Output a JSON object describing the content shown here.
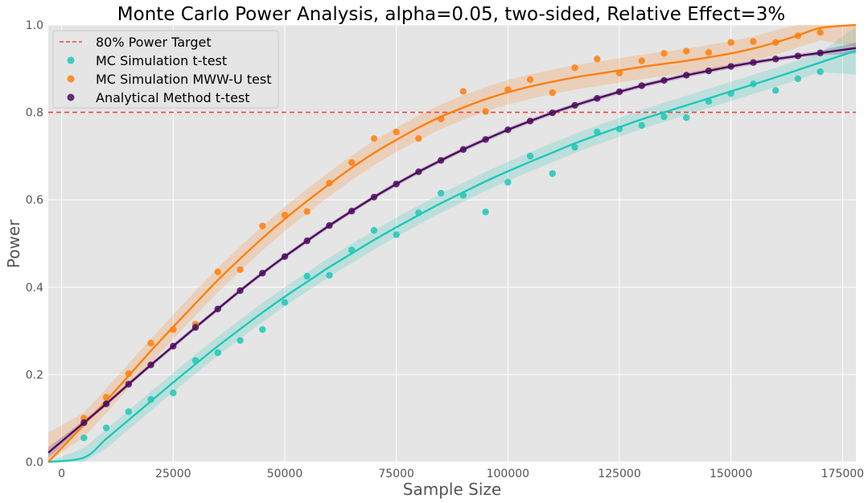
{
  "chart_data": {
    "type": "scatter",
    "title": "Monte Carlo Power Analysis, alpha=0.05, two-sided, Relative Effect=3%",
    "xlabel": "Sample Size",
    "ylabel": "Power",
    "xlim": [
      -3000,
      178000
    ],
    "ylim": [
      0,
      1.0
    ],
    "x_ticks": [
      0,
      25000,
      50000,
      75000,
      100000,
      125000,
      150000,
      175000
    ],
    "y_ticks": [
      0.0,
      0.2,
      0.4,
      0.6,
      0.8,
      1.0
    ],
    "x_tick_labels": [
      "0",
      "25000",
      "50000",
      "75000",
      "100000",
      "125000",
      "150000",
      "175000"
    ],
    "y_tick_labels": [
      "0.0",
      "0.2",
      "0.4",
      "0.6",
      "0.8",
      "1.0"
    ],
    "grid": true,
    "legend_position": "top-left",
    "reference_line": {
      "name": "80% Power Target",
      "y": 0.8,
      "color": "#ee4444",
      "style": "dashed"
    },
    "x": [
      5000,
      10000,
      15000,
      20000,
      25000,
      30000,
      35000,
      40000,
      45000,
      50000,
      55000,
      60000,
      65000,
      70000,
      75000,
      80000,
      85000,
      90000,
      95000,
      100000,
      105000,
      110000,
      115000,
      120000,
      125000,
      130000,
      135000,
      140000,
      145000,
      150000,
      155000,
      160000,
      165000,
      170000
    ],
    "series": [
      {
        "name": "MC Simulation t-test",
        "color": "#1ec8b8",
        "values": [
          0.055,
          0.078,
          0.115,
          0.143,
          0.158,
          0.232,
          0.25,
          0.278,
          0.303,
          0.365,
          0.425,
          0.427,
          0.485,
          0.53,
          0.52,
          0.57,
          0.615,
          0.61,
          0.572,
          0.64,
          0.7,
          0.66,
          0.72,
          0.755,
          0.762,
          0.77,
          0.79,
          0.788,
          0.825,
          0.843,
          0.865,
          0.85,
          0.877,
          0.893
        ],
        "fit": [
          0.01,
          0.053,
          0.096,
          0.139,
          0.182,
          0.224,
          0.265,
          0.304,
          0.342,
          0.378,
          0.412,
          0.446,
          0.477,
          0.508,
          0.537,
          0.565,
          0.592,
          0.617,
          0.642,
          0.665,
          0.687,
          0.708,
          0.729,
          0.748,
          0.766,
          0.784,
          0.8,
          0.816,
          0.832,
          0.848,
          0.864,
          0.88,
          0.897,
          0.914
        ]
      },
      {
        "name": "MC Simulation MWW-U test",
        "color": "#ff7f0e",
        "values": [
          0.1,
          0.148,
          0.202,
          0.272,
          0.303,
          0.315,
          0.435,
          0.44,
          0.54,
          0.565,
          0.573,
          0.638,
          0.685,
          0.74,
          0.755,
          0.74,
          0.785,
          0.848,
          0.802,
          0.852,
          0.875,
          0.845,
          0.902,
          0.922,
          0.89,
          0.918,
          0.935,
          0.94,
          0.937,
          0.96,
          0.962,
          0.96,
          0.975,
          0.983
        ],
        "fit": [
          0.085,
          0.14,
          0.197,
          0.254,
          0.309,
          0.363,
          0.416,
          0.465,
          0.512,
          0.556,
          0.597,
          0.636,
          0.673,
          0.707,
          0.737,
          0.765,
          0.79,
          0.811,
          0.83,
          0.846,
          0.859,
          0.87,
          0.88,
          0.888,
          0.896,
          0.904,
          0.911,
          0.918,
          0.926,
          0.935,
          0.946,
          0.96,
          0.976,
          0.993
        ]
      },
      {
        "name": "Analytical Method t-test",
        "color": "#4d0a5e",
        "values": [
          0.09,
          0.133,
          0.178,
          0.222,
          0.265,
          0.308,
          0.35,
          0.392,
          0.432,
          0.47,
          0.506,
          0.541,
          0.574,
          0.606,
          0.636,
          0.664,
          0.69,
          0.715,
          0.738,
          0.76,
          0.78,
          0.799,
          0.816,
          0.832,
          0.847,
          0.861,
          0.873,
          0.885,
          0.895,
          0.905,
          0.914,
          0.922,
          0.929,
          0.936
        ],
        "fit": [
          0.09,
          0.133,
          0.178,
          0.222,
          0.265,
          0.308,
          0.35,
          0.392,
          0.432,
          0.47,
          0.506,
          0.541,
          0.574,
          0.606,
          0.636,
          0.664,
          0.69,
          0.715,
          0.738,
          0.76,
          0.78,
          0.799,
          0.816,
          0.832,
          0.847,
          0.861,
          0.873,
          0.885,
          0.895,
          0.905,
          0.914,
          0.922,
          0.929,
          0.936
        ]
      }
    ]
  }
}
